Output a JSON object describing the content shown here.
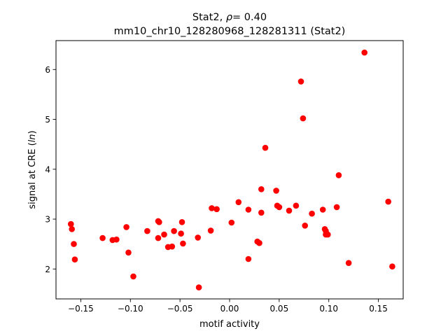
{
  "chart_data": {
    "type": "scatter",
    "title_line1_prefix": "Stat2, ",
    "title_rho_symbol": "ρ",
    "title_rho_value": "= 0.40",
    "title_line2": "mm10_chr10_128280968_128281311 (Stat2)",
    "xlabel": "motif activity",
    "ylabel_prefix": "signal at CRE (",
    "ylabel_italic": "ln",
    "ylabel_suffix": ")",
    "xlim": [
      -0.175,
      0.175
    ],
    "ylim": [
      1.4,
      6.58
    ],
    "x_ticks": [
      -0.15,
      -0.1,
      -0.05,
      0.0,
      0.05,
      0.1,
      0.15
    ],
    "x_tick_labels": [
      "−0.15",
      "−0.10",
      "−0.05",
      "0.00",
      "0.05",
      "0.10",
      "0.15"
    ],
    "y_ticks": [
      2,
      3,
      4,
      5,
      6
    ],
    "y_tick_labels": [
      "2",
      "3",
      "4",
      "5",
      "6"
    ],
    "grid": false,
    "legend": "none",
    "marker_color": "#ff0000",
    "points": [
      {
        "x": -0.16,
        "y": 2.9
      },
      {
        "x": -0.159,
        "y": 2.8
      },
      {
        "x": -0.157,
        "y": 2.5
      },
      {
        "x": -0.156,
        "y": 2.19
      },
      {
        "x": -0.128,
        "y": 2.62
      },
      {
        "x": -0.118,
        "y": 2.58
      },
      {
        "x": -0.114,
        "y": 2.59
      },
      {
        "x": -0.104,
        "y": 2.84
      },
      {
        "x": -0.102,
        "y": 2.33
      },
      {
        "x": -0.097,
        "y": 1.85
      },
      {
        "x": -0.083,
        "y": 2.76
      },
      {
        "x": -0.072,
        "y": 2.96
      },
      {
        "x": -0.071,
        "y": 2.94
      },
      {
        "x": -0.072,
        "y": 2.62
      },
      {
        "x": -0.066,
        "y": 2.69
      },
      {
        "x": -0.062,
        "y": 2.44
      },
      {
        "x": -0.058,
        "y": 2.45
      },
      {
        "x": -0.056,
        "y": 2.76
      },
      {
        "x": -0.049,
        "y": 2.71
      },
      {
        "x": -0.048,
        "y": 2.94
      },
      {
        "x": -0.047,
        "y": 2.51
      },
      {
        "x": -0.032,
        "y": 2.63
      },
      {
        "x": -0.031,
        "y": 1.63
      },
      {
        "x": -0.019,
        "y": 2.77
      },
      {
        "x": -0.018,
        "y": 3.22
      },
      {
        "x": -0.013,
        "y": 3.2
      },
      {
        "x": 0.002,
        "y": 2.93
      },
      {
        "x": 0.009,
        "y": 3.34
      },
      {
        "x": 0.019,
        "y": 3.19
      },
      {
        "x": 0.019,
        "y": 2.2
      },
      {
        "x": 0.028,
        "y": 2.55
      },
      {
        "x": 0.03,
        "y": 2.52
      },
      {
        "x": 0.032,
        "y": 3.13
      },
      {
        "x": 0.032,
        "y": 3.6
      },
      {
        "x": 0.036,
        "y": 4.43
      },
      {
        "x": 0.047,
        "y": 3.57
      },
      {
        "x": 0.048,
        "y": 3.27
      },
      {
        "x": 0.05,
        "y": 3.24
      },
      {
        "x": 0.06,
        "y": 3.17
      },
      {
        "x": 0.067,
        "y": 3.27
      },
      {
        "x": 0.072,
        "y": 5.76
      },
      {
        "x": 0.074,
        "y": 5.02
      },
      {
        "x": 0.076,
        "y": 2.87
      },
      {
        "x": 0.083,
        "y": 3.11
      },
      {
        "x": 0.094,
        "y": 3.19
      },
      {
        "x": 0.096,
        "y": 2.8
      },
      {
        "x": 0.097,
        "y": 2.76
      },
      {
        "x": 0.097,
        "y": 2.69
      },
      {
        "x": 0.099,
        "y": 2.69
      },
      {
        "x": 0.108,
        "y": 3.24
      },
      {
        "x": 0.11,
        "y": 3.88
      },
      {
        "x": 0.12,
        "y": 2.12
      },
      {
        "x": 0.136,
        "y": 6.34
      },
      {
        "x": 0.16,
        "y": 3.35
      },
      {
        "x": 0.164,
        "y": 2.05
      }
    ]
  }
}
